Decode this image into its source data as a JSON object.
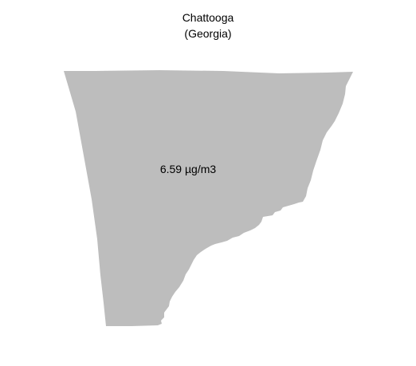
{
  "map": {
    "title": "Chattooga",
    "subtitle": "(Georgia)",
    "region_label": "6.59 µg/m3",
    "region_value": 6.59,
    "region_unit": "µg/m3",
    "fill_color": "#bdbdbd",
    "background_color": "#ffffff"
  }
}
